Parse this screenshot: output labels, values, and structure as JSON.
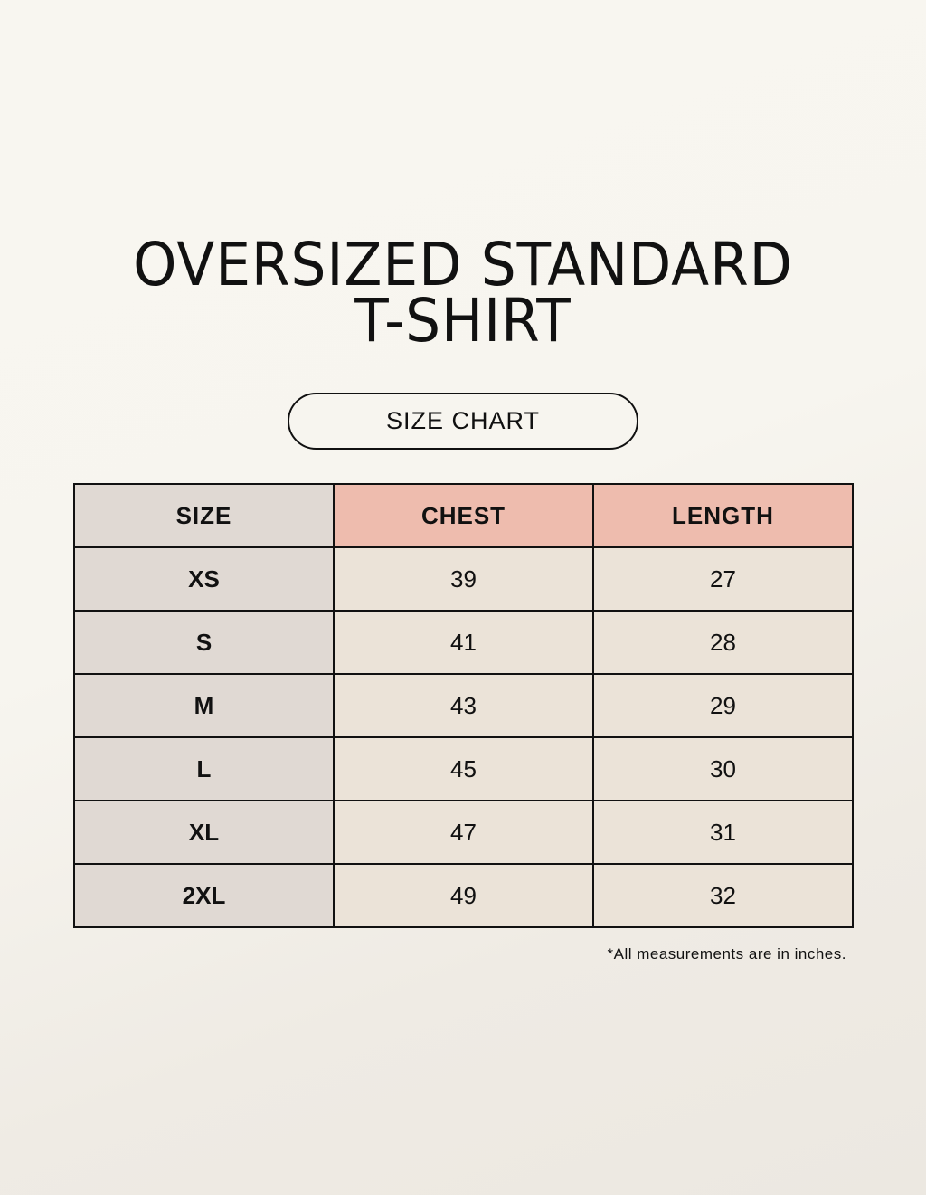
{
  "title_line1": "OVERSIZED STANDARD",
  "title_line2": "T-SHIRT",
  "subtitle": "SIZE CHART",
  "colors": {
    "size_column": "#e0d9d3",
    "header_highlight": "#eebcae",
    "value_cells": "#ebe3d8"
  },
  "table": {
    "headers": [
      "SIZE",
      "CHEST",
      "LENGTH"
    ],
    "rows": [
      [
        "XS",
        "39",
        "27"
      ],
      [
        "S",
        "41",
        "28"
      ],
      [
        "M",
        "43",
        "29"
      ],
      [
        "L",
        "45",
        "30"
      ],
      [
        "XL",
        "47",
        "31"
      ],
      [
        "2XL",
        "49",
        "32"
      ]
    ]
  },
  "footnote": "*All measurements are in inches."
}
